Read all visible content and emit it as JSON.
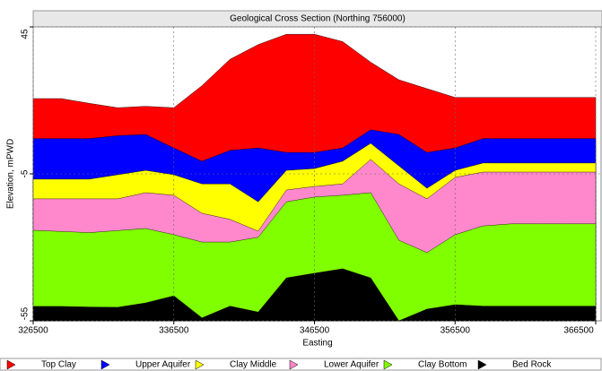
{
  "chart_data": {
    "type": "area",
    "title": "Geological Cross Section (Northing 756000)",
    "x_label": "Easting",
    "y_label": "Elevation, mPWD",
    "x": [
      326500,
      328500,
      330500,
      332500,
      334500,
      336500,
      338500,
      340500,
      342500,
      344500,
      346500,
      348500,
      350500,
      352500,
      354500,
      356500,
      358500,
      360500,
      362500,
      364500,
      366500
    ],
    "series": [
      {
        "name": "Top Clay",
        "color": "#ff0000",
        "values": [
          20.6,
          20.6,
          19,
          17.5,
          18,
          17.5,
          25,
          34,
          39,
          42.5,
          42.5,
          40,
          33,
          27,
          24,
          21,
          21,
          21,
          21,
          21,
          21
        ]
      },
      {
        "name": "Upper Aquifer",
        "color": "#0000ff",
        "values": [
          7,
          7,
          7,
          8,
          8.4,
          3.8,
          -0.7,
          3,
          3.8,
          2.3,
          2.3,
          3.8,
          10,
          8.4,
          2.3,
          3.8,
          7,
          7,
          7,
          7,
          7
        ]
      },
      {
        "name": "Clay Middle",
        "color": "#ffff00",
        "values": [
          -6.8,
          -6.8,
          -6.8,
          -5.3,
          -3.8,
          -5.3,
          -8.4,
          -8.4,
          -14.5,
          -3.8,
          -3.2,
          -0.7,
          5.4,
          -2.3,
          -9.9,
          -3.8,
          -1.3,
          -1.3,
          -1.3,
          -1.3,
          -1.3
        ]
      },
      {
        "name": "Lower Aquifer",
        "color": "#ff88cc",
        "values": [
          -13.5,
          -13.5,
          -13.5,
          -13.5,
          -11.4,
          -12.3,
          -18.4,
          -20.5,
          -24.5,
          -10.5,
          -9.3,
          -8.4,
          -0.1,
          -8.4,
          -13.5,
          -6.2,
          -4.4,
          -4.4,
          -4.4,
          -4.4,
          -4.4
        ]
      },
      {
        "name": "Clay Bottom",
        "color": "#80ff00",
        "values": [
          -24.2,
          -24.6,
          -25,
          -24.3,
          -23.6,
          -25.7,
          -28.2,
          -28.2,
          -26.6,
          -14.5,
          -12.9,
          -12.3,
          -11.4,
          -27.6,
          -31.8,
          -25.7,
          -22.7,
          -22,
          -22,
          -22,
          -22
        ]
      },
      {
        "name": "Bed Rock",
        "color": "#000000",
        "values": [
          -50.1,
          -50.1,
          -50.3,
          -50.4,
          -48.9,
          -46.5,
          -54,
          -50,
          -52,
          -40.4,
          -38.8,
          -37.3,
          -40.4,
          -55,
          -51,
          -49.5,
          -50,
          -50,
          -50,
          -50,
          -50
        ]
      }
    ],
    "xlim": [
      326500,
      366500
    ],
    "ylim": [
      -55,
      45
    ],
    "xticks": [
      326500,
      336500,
      346500,
      356500,
      366500
    ],
    "yticks": [
      -55,
      -5,
      45
    ],
    "grid": true,
    "legend": "bottom"
  }
}
